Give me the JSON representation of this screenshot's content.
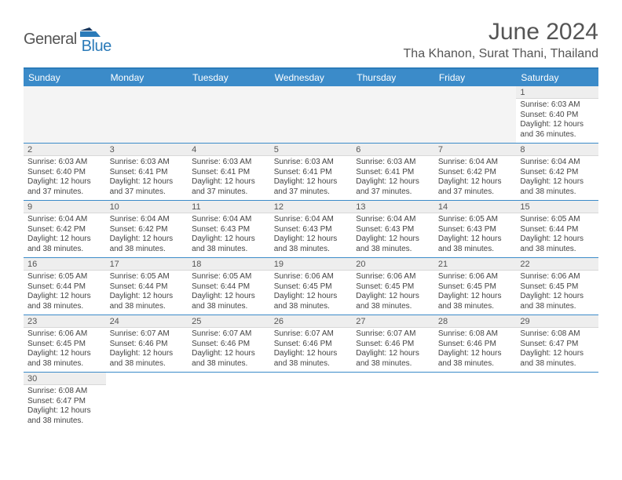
{
  "logo": {
    "general": "General",
    "blue": "Blue"
  },
  "title": "June 2024",
  "location": "Tha Khanon, Surat Thani, Thailand",
  "colors": {
    "header_bar": "#3b8bc9",
    "header_top_border": "#2b7bb9",
    "week_border": "#3b8bc9",
    "daynum_bg": "#eeeeee",
    "empty_bg": "#f4f4f4"
  },
  "weekdays": [
    "Sunday",
    "Monday",
    "Tuesday",
    "Wednesday",
    "Thursday",
    "Friday",
    "Saturday"
  ],
  "grid": [
    [
      null,
      null,
      null,
      null,
      null,
      null,
      {
        "n": "1",
        "rise": "6:03 AM",
        "set": "6:40 PM",
        "dl": "12 hours and 36 minutes."
      }
    ],
    [
      {
        "n": "2",
        "rise": "6:03 AM",
        "set": "6:40 PM",
        "dl": "12 hours and 37 minutes."
      },
      {
        "n": "3",
        "rise": "6:03 AM",
        "set": "6:41 PM",
        "dl": "12 hours and 37 minutes."
      },
      {
        "n": "4",
        "rise": "6:03 AM",
        "set": "6:41 PM",
        "dl": "12 hours and 37 minutes."
      },
      {
        "n": "5",
        "rise": "6:03 AM",
        "set": "6:41 PM",
        "dl": "12 hours and 37 minutes."
      },
      {
        "n": "6",
        "rise": "6:03 AM",
        "set": "6:41 PM",
        "dl": "12 hours and 37 minutes."
      },
      {
        "n": "7",
        "rise": "6:04 AM",
        "set": "6:42 PM",
        "dl": "12 hours and 37 minutes."
      },
      {
        "n": "8",
        "rise": "6:04 AM",
        "set": "6:42 PM",
        "dl": "12 hours and 38 minutes."
      }
    ],
    [
      {
        "n": "9",
        "rise": "6:04 AM",
        "set": "6:42 PM",
        "dl": "12 hours and 38 minutes."
      },
      {
        "n": "10",
        "rise": "6:04 AM",
        "set": "6:42 PM",
        "dl": "12 hours and 38 minutes."
      },
      {
        "n": "11",
        "rise": "6:04 AM",
        "set": "6:43 PM",
        "dl": "12 hours and 38 minutes."
      },
      {
        "n": "12",
        "rise": "6:04 AM",
        "set": "6:43 PM",
        "dl": "12 hours and 38 minutes."
      },
      {
        "n": "13",
        "rise": "6:04 AM",
        "set": "6:43 PM",
        "dl": "12 hours and 38 minutes."
      },
      {
        "n": "14",
        "rise": "6:05 AM",
        "set": "6:43 PM",
        "dl": "12 hours and 38 minutes."
      },
      {
        "n": "15",
        "rise": "6:05 AM",
        "set": "6:44 PM",
        "dl": "12 hours and 38 minutes."
      }
    ],
    [
      {
        "n": "16",
        "rise": "6:05 AM",
        "set": "6:44 PM",
        "dl": "12 hours and 38 minutes."
      },
      {
        "n": "17",
        "rise": "6:05 AM",
        "set": "6:44 PM",
        "dl": "12 hours and 38 minutes."
      },
      {
        "n": "18",
        "rise": "6:05 AM",
        "set": "6:44 PM",
        "dl": "12 hours and 38 minutes."
      },
      {
        "n": "19",
        "rise": "6:06 AM",
        "set": "6:45 PM",
        "dl": "12 hours and 38 minutes."
      },
      {
        "n": "20",
        "rise": "6:06 AM",
        "set": "6:45 PM",
        "dl": "12 hours and 38 minutes."
      },
      {
        "n": "21",
        "rise": "6:06 AM",
        "set": "6:45 PM",
        "dl": "12 hours and 38 minutes."
      },
      {
        "n": "22",
        "rise": "6:06 AM",
        "set": "6:45 PM",
        "dl": "12 hours and 38 minutes."
      }
    ],
    [
      {
        "n": "23",
        "rise": "6:06 AM",
        "set": "6:45 PM",
        "dl": "12 hours and 38 minutes."
      },
      {
        "n": "24",
        "rise": "6:07 AM",
        "set": "6:46 PM",
        "dl": "12 hours and 38 minutes."
      },
      {
        "n": "25",
        "rise": "6:07 AM",
        "set": "6:46 PM",
        "dl": "12 hours and 38 minutes."
      },
      {
        "n": "26",
        "rise": "6:07 AM",
        "set": "6:46 PM",
        "dl": "12 hours and 38 minutes."
      },
      {
        "n": "27",
        "rise": "6:07 AM",
        "set": "6:46 PM",
        "dl": "12 hours and 38 minutes."
      },
      {
        "n": "28",
        "rise": "6:08 AM",
        "set": "6:46 PM",
        "dl": "12 hours and 38 minutes."
      },
      {
        "n": "29",
        "rise": "6:08 AM",
        "set": "6:47 PM",
        "dl": "12 hours and 38 minutes."
      }
    ],
    [
      {
        "n": "30",
        "rise": "6:08 AM",
        "set": "6:47 PM",
        "dl": "12 hours and 38 minutes."
      },
      null,
      null,
      null,
      null,
      null,
      null
    ]
  ],
  "labels": {
    "sunrise": "Sunrise:",
    "sunset": "Sunset:",
    "daylight": "Daylight:"
  }
}
